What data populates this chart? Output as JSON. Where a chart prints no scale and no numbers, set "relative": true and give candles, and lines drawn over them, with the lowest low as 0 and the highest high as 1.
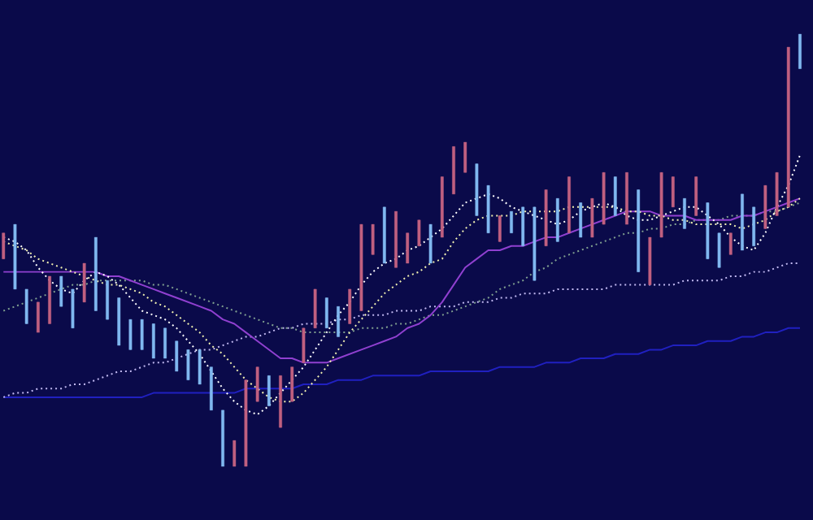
{
  "chart_data": {
    "type": "candlestick",
    "relative": true,
    "categories": [
      null,
      null,
      null,
      null,
      null,
      null,
      null,
      null,
      null,
      null,
      null,
      null,
      null,
      null,
      null,
      null,
      null,
      null,
      null,
      null,
      null,
      null,
      null,
      null,
      null,
      null,
      null,
      null,
      null,
      null,
      null,
      null,
      null,
      null,
      null,
      null,
      null,
      null,
      null,
      null,
      null,
      null,
      null,
      null,
      null,
      null,
      null,
      null,
      null,
      null,
      null,
      null,
      null,
      null,
      null,
      null,
      null,
      null,
      null,
      null,
      null,
      null,
      null,
      null,
      null,
      null,
      null,
      null,
      null,
      null
    ],
    "ohlc": [
      [
        0.48,
        0.54,
        0.48,
        0.54
      ],
      [
        0.56,
        0.56,
        0.41,
        0.41
      ],
      [
        0.41,
        0.41,
        0.33,
        0.33
      ],
      [
        0.31,
        0.38,
        0.31,
        0.38
      ],
      [
        0.33,
        0.44,
        0.33,
        0.44
      ],
      [
        0.44,
        0.44,
        0.37,
        0.37
      ],
      [
        0.41,
        0.41,
        0.32,
        0.32
      ],
      [
        0.38,
        0.47,
        0.38,
        0.47
      ],
      [
        0.53,
        0.53,
        0.36,
        0.36
      ],
      [
        0.43,
        0.43,
        0.34,
        0.34
      ],
      [
        0.39,
        0.39,
        0.28,
        0.28
      ],
      [
        0.34,
        0.34,
        0.27,
        0.27
      ],
      [
        0.34,
        0.34,
        0.27,
        0.27
      ],
      [
        0.33,
        0.33,
        0.25,
        0.25
      ],
      [
        0.32,
        0.32,
        0.25,
        0.25
      ],
      [
        0.29,
        0.29,
        0.22,
        0.22
      ],
      [
        0.27,
        0.27,
        0.2,
        0.2
      ],
      [
        0.27,
        0.27,
        0.19,
        0.19
      ],
      [
        0.23,
        0.23,
        0.13,
        0.13
      ],
      [
        0.13,
        0.13,
        0.0,
        0.0
      ],
      [
        0.0,
        0.06,
        0.0,
        0.06
      ],
      [
        0.0,
        0.2,
        0.0,
        0.2
      ],
      [
        0.15,
        0.23,
        0.15,
        0.23
      ],
      [
        0.21,
        0.21,
        0.14,
        0.14
      ],
      [
        0.09,
        0.21,
        0.09,
        0.21
      ],
      [
        0.15,
        0.23,
        0.15,
        0.23
      ],
      [
        0.24,
        0.32,
        0.24,
        0.32
      ],
      [
        0.32,
        0.41,
        0.32,
        0.41
      ],
      [
        0.39,
        0.39,
        0.32,
        0.32
      ],
      [
        0.37,
        0.37,
        0.3,
        0.3
      ],
      [
        0.33,
        0.41,
        0.33,
        0.41
      ],
      [
        0.36,
        0.56,
        0.36,
        0.56
      ],
      [
        0.49,
        0.56,
        0.49,
        0.56
      ],
      [
        0.6,
        0.6,
        0.47,
        0.47
      ],
      [
        0.46,
        0.59,
        0.46,
        0.59
      ],
      [
        0.47,
        0.54,
        0.47,
        0.54
      ],
      [
        0.51,
        0.57,
        0.51,
        0.57
      ],
      [
        0.56,
        0.56,
        0.47,
        0.47
      ],
      [
        0.53,
        0.67,
        0.53,
        0.67
      ],
      [
        0.63,
        0.74,
        0.63,
        0.74
      ],
      [
        0.68,
        0.75,
        0.68,
        0.75
      ],
      [
        0.7,
        0.7,
        0.58,
        0.58
      ],
      [
        0.65,
        0.65,
        0.54,
        0.54
      ],
      [
        0.52,
        0.58,
        0.52,
        0.58
      ],
      [
        0.59,
        0.59,
        0.54,
        0.54
      ],
      [
        0.6,
        0.6,
        0.51,
        0.51
      ],
      [
        0.6,
        0.6,
        0.43,
        0.43
      ],
      [
        0.51,
        0.64,
        0.51,
        0.64
      ],
      [
        0.62,
        0.62,
        0.52,
        0.52
      ],
      [
        0.54,
        0.67,
        0.54,
        0.67
      ],
      [
        0.61,
        0.61,
        0.53,
        0.53
      ],
      [
        0.53,
        0.62,
        0.53,
        0.62
      ],
      [
        0.56,
        0.68,
        0.56,
        0.68
      ],
      [
        0.67,
        0.67,
        0.58,
        0.58
      ],
      [
        0.56,
        0.68,
        0.56,
        0.68
      ],
      [
        0.64,
        0.64,
        0.45,
        0.45
      ],
      [
        0.42,
        0.53,
        0.42,
        0.53
      ],
      [
        0.53,
        0.68,
        0.53,
        0.68
      ],
      [
        0.6,
        0.67,
        0.6,
        0.67
      ],
      [
        0.62,
        0.62,
        0.55,
        0.55
      ],
      [
        0.58,
        0.67,
        0.58,
        0.67
      ],
      [
        0.61,
        0.61,
        0.48,
        0.48
      ],
      [
        0.54,
        0.54,
        0.46,
        0.46
      ],
      [
        0.49,
        0.54,
        0.49,
        0.54
      ],
      [
        0.63,
        0.63,
        0.5,
        0.5
      ],
      [
        0.6,
        0.6,
        0.51,
        0.51
      ],
      [
        0.55,
        0.65,
        0.55,
        0.65
      ],
      [
        0.58,
        0.68,
        0.58,
        0.68
      ],
      [
        0.6,
        0.97,
        0.6,
        0.97
      ],
      [
        1.0,
        1.0,
        0.92,
        0.92
      ]
    ],
    "colors": [
      "#c06080",
      "#80b8f0",
      "#80b8f0",
      "#c06080",
      "#c06080",
      "#80b8f0",
      "#80b8f0",
      "#c06080",
      "#80b8f0",
      "#80b8f0",
      "#80b8f0",
      "#80b8f0",
      "#80b8f0",
      "#80b8f0",
      "#80b8f0",
      "#80b8f0",
      "#80b8f0",
      "#80b8f0",
      "#80b8f0",
      "#80b8f0",
      "#c06080",
      "#c06080",
      "#c06080",
      "#80b8f0",
      "#c06080",
      "#c06080",
      "#c06080",
      "#c06080",
      "#80b8f0",
      "#80b8f0",
      "#c06080",
      "#c06080",
      "#c06080",
      "#80b8f0",
      "#c06080",
      "#c06080",
      "#c06080",
      "#80b8f0",
      "#c06080",
      "#c06080",
      "#c06080",
      "#80b8f0",
      "#80b8f0",
      "#c06080",
      "#80b8f0",
      "#80b8f0",
      "#80b8f0",
      "#c06080",
      "#80b8f0",
      "#c06080",
      "#80b8f0",
      "#c06080",
      "#c06080",
      "#80b8f0",
      "#c06080",
      "#80b8f0",
      "#c06080",
      "#c06080",
      "#c06080",
      "#80b8f0",
      "#c06080",
      "#80b8f0",
      "#80b8f0",
      "#c06080",
      "#80b8f0",
      "#80b8f0",
      "#c06080",
      "#c06080",
      "#c06080",
      "#80b8f0"
    ],
    "series": [
      {
        "type": "line",
        "color": "#2020c0",
        "line_style": "solid",
        "values": [
          0.16,
          0.16,
          0.16,
          0.16,
          0.16,
          0.16,
          0.16,
          0.16,
          0.16,
          0.16,
          0.16,
          0.16,
          0.16,
          0.17,
          0.17,
          0.17,
          0.17,
          0.17,
          0.17,
          0.17,
          0.17,
          0.18,
          0.18,
          0.18,
          0.18,
          0.18,
          0.19,
          0.19,
          0.19,
          0.2,
          0.2,
          0.2,
          0.21,
          0.21,
          0.21,
          0.21,
          0.21,
          0.22,
          0.22,
          0.22,
          0.22,
          0.22,
          0.22,
          0.23,
          0.23,
          0.23,
          0.23,
          0.24,
          0.24,
          0.24,
          0.25,
          0.25,
          0.25,
          0.26,
          0.26,
          0.26,
          0.27,
          0.27,
          0.28,
          0.28,
          0.28,
          0.29,
          0.29,
          0.29,
          0.3,
          0.3,
          0.31,
          0.31,
          0.32,
          0.32
        ]
      },
      {
        "type": "line",
        "color": "#c0b8f0",
        "line_style": "dotted",
        "values": [
          0.16,
          0.17,
          0.17,
          0.18,
          0.18,
          0.18,
          0.19,
          0.19,
          0.2,
          0.21,
          0.22,
          0.22,
          0.23,
          0.24,
          0.24,
          0.25,
          0.26,
          0.27,
          0.27,
          0.28,
          0.29,
          0.3,
          0.3,
          0.31,
          0.32,
          0.32,
          0.33,
          0.33,
          0.33,
          0.34,
          0.34,
          0.35,
          0.35,
          0.35,
          0.36,
          0.36,
          0.36,
          0.37,
          0.37,
          0.37,
          0.38,
          0.38,
          0.38,
          0.39,
          0.39,
          0.4,
          0.4,
          0.4,
          0.41,
          0.41,
          0.41,
          0.41,
          0.41,
          0.42,
          0.42,
          0.42,
          0.42,
          0.42,
          0.42,
          0.43,
          0.43,
          0.43,
          0.43,
          0.44,
          0.44,
          0.45,
          0.45,
          0.46,
          0.47,
          0.47
        ]
      },
      {
        "type": "line",
        "color": "#80a090",
        "line_style": "dotted",
        "values": [
          0.36,
          0.37,
          0.38,
          0.39,
          0.4,
          0.41,
          0.42,
          0.42,
          0.43,
          0.43,
          0.43,
          0.43,
          0.43,
          0.42,
          0.42,
          0.41,
          0.4,
          0.39,
          0.38,
          0.37,
          0.36,
          0.35,
          0.34,
          0.33,
          0.32,
          0.32,
          0.31,
          0.31,
          0.31,
          0.31,
          0.31,
          0.32,
          0.32,
          0.32,
          0.33,
          0.33,
          0.34,
          0.35,
          0.35,
          0.36,
          0.37,
          0.38,
          0.39,
          0.41,
          0.42,
          0.43,
          0.45,
          0.46,
          0.48,
          0.49,
          0.5,
          0.51,
          0.52,
          0.53,
          0.54,
          0.54,
          0.55,
          0.55,
          0.56,
          0.56,
          0.57,
          0.57,
          0.57,
          0.58,
          0.58,
          0.58,
          0.59,
          0.59,
          0.6,
          0.61
        ]
      },
      {
        "type": "line",
        "color": "#9040d0",
        "line_style": "solid",
        "values": [
          0.45,
          0.45,
          0.45,
          0.45,
          0.45,
          0.45,
          0.45,
          0.45,
          0.45,
          0.44,
          0.44,
          0.43,
          0.42,
          0.41,
          0.4,
          0.39,
          0.38,
          0.37,
          0.36,
          0.34,
          0.33,
          0.31,
          0.29,
          0.27,
          0.25,
          0.25,
          0.24,
          0.24,
          0.24,
          0.25,
          0.26,
          0.27,
          0.28,
          0.29,
          0.3,
          0.32,
          0.33,
          0.35,
          0.38,
          0.42,
          0.46,
          0.48,
          0.5,
          0.5,
          0.51,
          0.51,
          0.52,
          0.53,
          0.53,
          0.54,
          0.55,
          0.56,
          0.57,
          0.58,
          0.59,
          0.59,
          0.59,
          0.58,
          0.58,
          0.58,
          0.57,
          0.57,
          0.57,
          0.57,
          0.58,
          0.58,
          0.59,
          0.6,
          0.61,
          0.62
        ]
      },
      {
        "type": "line",
        "color": "#f0f0b0",
        "line_style": "dotted",
        "values": [
          0.52,
          0.51,
          0.5,
          0.48,
          0.47,
          0.46,
          0.45,
          0.44,
          0.43,
          0.42,
          0.42,
          0.41,
          0.4,
          0.38,
          0.37,
          0.35,
          0.33,
          0.31,
          0.28,
          0.26,
          0.23,
          0.2,
          0.18,
          0.16,
          0.15,
          0.15,
          0.17,
          0.2,
          0.23,
          0.27,
          0.31,
          0.34,
          0.37,
          0.4,
          0.42,
          0.44,
          0.45,
          0.47,
          0.48,
          0.52,
          0.55,
          0.57,
          0.58,
          0.58,
          0.58,
          0.59,
          0.59,
          0.59,
          0.59,
          0.6,
          0.6,
          0.6,
          0.6,
          0.6,
          0.59,
          0.59,
          0.58,
          0.58,
          0.57,
          0.57,
          0.56,
          0.56,
          0.56,
          0.56,
          0.55,
          0.56,
          0.57,
          0.59,
          0.6,
          0.62
        ]
      },
      {
        "type": "line",
        "color": "#ffffff",
        "line_style": "dotted",
        "values": [
          0.53,
          0.52,
          0.5,
          0.46,
          0.43,
          0.41,
          0.4,
          0.43,
          0.45,
          0.44,
          0.42,
          0.39,
          0.36,
          0.35,
          0.34,
          0.32,
          0.29,
          0.26,
          0.22,
          0.18,
          0.15,
          0.13,
          0.12,
          0.14,
          0.17,
          0.2,
          0.23,
          0.27,
          0.31,
          0.35,
          0.38,
          0.42,
          0.45,
          0.47,
          0.48,
          0.5,
          0.51,
          0.53,
          0.55,
          0.58,
          0.61,
          0.62,
          0.63,
          0.62,
          0.6,
          0.59,
          0.58,
          0.57,
          0.56,
          0.57,
          0.59,
          0.6,
          0.61,
          0.6,
          0.58,
          0.57,
          0.57,
          0.58,
          0.59,
          0.6,
          0.6,
          0.58,
          0.56,
          0.53,
          0.51,
          0.5,
          0.54,
          0.6,
          0.65,
          0.72
        ]
      }
    ]
  }
}
